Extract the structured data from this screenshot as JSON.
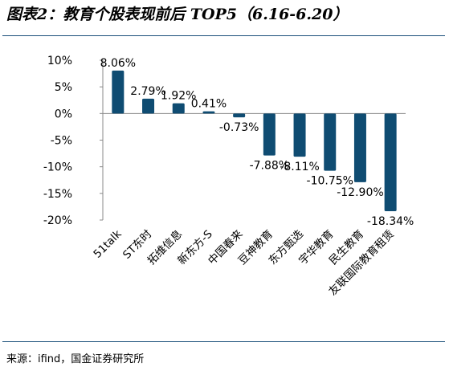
{
  "title": "图表2：教育个股表现前后 TOP5（6.16-6.20）",
  "source": "来源：ifind，国金证券研究所",
  "colors": {
    "bar": "#0f4c72",
    "axis": "#888888",
    "rule": "#1a4f7a"
  },
  "chart_data": {
    "type": "bar",
    "categories": [
      "51talk",
      "ST东时",
      "拓维信息",
      "新东方-S",
      "中国春来",
      "豆神教育",
      "东方甄选",
      "宇华教育",
      "民生教育",
      "友联国际教育租赁"
    ],
    "values": [
      8.06,
      2.79,
      1.92,
      0.41,
      -0.73,
      -7.88,
      -8.11,
      -10.75,
      -12.9,
      -18.34
    ],
    "data_labels": [
      "8.06%",
      "2.79%",
      "1.92%",
      "0.41%",
      "-0.73%",
      "-7.88%",
      "-8.11%",
      "-10.75%",
      "-12.90%",
      "-18.34%"
    ],
    "yticks": [
      10,
      5,
      0,
      -5,
      -10,
      -15,
      -20
    ],
    "ytick_labels": [
      "10%",
      "5%",
      "0%",
      "-5%",
      "-10%",
      "-15%",
      "-20%"
    ],
    "ylim": [
      -20,
      10
    ],
    "grid": false,
    "legend": "none"
  }
}
